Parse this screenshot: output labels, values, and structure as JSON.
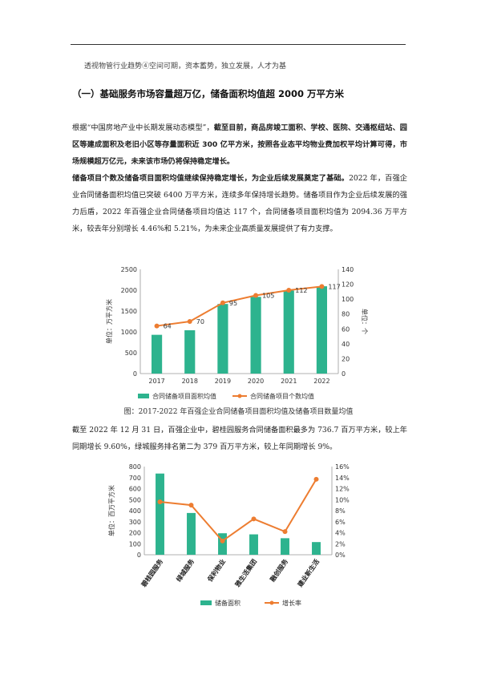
{
  "header": {
    "text": "透视物管行业趋势④空间可期，资本蓄势，独立发展，人才为基"
  },
  "section": {
    "title": "（一）基础服务市场容量超万亿，储备面积均值超 2000 万平方米"
  },
  "para1": {
    "lead": "根据“中国房地产业中长期发展动态模型”，",
    "bold": "截至目前，商品房竣工面积、学校、医院、交通枢纽站、园区等建成面积及老旧小区等存量面积近 300 亿平方米，按照各业态平均物业费加权平均计算可得，市场规模超万亿元，未来该市场仍将保持稳定增长。"
  },
  "para2": {
    "bold": "储备项目个数及储备项目面积均值继续保持稳定增长，为企业后续发展奠定了基础。",
    "text": "2022 年，百强企业合同储备面积均值已突破 6400 万平方米，连续多年保持增长趋势。储备项目作为企业后续发展的强力后盾，2022 年百强企业合同储备项目均值达 117 个，合同储备项目面积均值为 2094.36 万平方米，较去年分别增长 4.46%和 5.21%，为未来企业高质量发展提供了有力支撑。"
  },
  "caption1": "图：2017-2022 年百强企业合同储备项目面积均值及储备项目数量均值",
  "para3": {
    "text": "截至 2022 年 12 月 31 日，百强企业中，碧桂园服务合同储备面积最多为 736.7 百万平方米，较上年同期增长 9.60%，绿城服务排名第二为 379 百万平方米，较上年同期增长 9%。"
  },
  "colors": {
    "bar": "#2db38e",
    "line": "#ed7d31"
  },
  "chart_data": [
    {
      "type": "bar",
      "categories": [
        "2017",
        "2018",
        "2019",
        "2020",
        "2021",
        "2022"
      ],
      "series": [
        {
          "name": "合同储备项目面积均值",
          "type": "bar",
          "axis": "left",
          "values": [
            930,
            1040,
            1670,
            1840,
            1990,
            2094.36
          ]
        },
        {
          "name": "合同储备项目个数均值",
          "type": "line",
          "axis": "right",
          "values": [
            64,
            70,
            95,
            105,
            112,
            117
          ]
        }
      ],
      "ylabel": "单位：万平方米",
      "y2label": "单位：个",
      "ylim": [
        0,
        2500
      ],
      "y2lim": [
        0,
        140
      ],
      "yticks": [
        "0",
        "500",
        "1000",
        "1500",
        "2000",
        "2500"
      ],
      "y2ticks": [
        "0",
        "20",
        "40",
        "60",
        "80",
        "100",
        "120",
        "140"
      ],
      "data_labels": [
        "64",
        "70",
        "95",
        "105",
        "112",
        "117"
      ],
      "legend": "bottom"
    },
    {
      "type": "bar",
      "categories": [
        "碧桂园服务",
        "绿城服务",
        "保利物业",
        "雅生活集团",
        "融创服务",
        "建业新生活"
      ],
      "series": [
        {
          "name": "储备面积",
          "type": "bar",
          "axis": "left",
          "values": [
            736.7,
            379,
            195,
            185,
            150,
            115
          ]
        },
        {
          "name": "增长率",
          "type": "line",
          "axis": "right",
          "values": [
            9.6,
            9.0,
            2.5,
            6.5,
            4.2,
            13.7
          ]
        }
      ],
      "ylabel": "单位：百万平方米",
      "ylim": [
        0,
        800
      ],
      "y2lim": [
        0,
        16
      ],
      "yticks": [
        "0",
        "100",
        "200",
        "300",
        "400",
        "500",
        "600",
        "700",
        "800"
      ],
      "y2ticks": [
        "0%",
        "2%",
        "4%",
        "6%",
        "8%",
        "10%",
        "12%",
        "14%",
        "16%"
      ],
      "legend": "bottom"
    }
  ]
}
